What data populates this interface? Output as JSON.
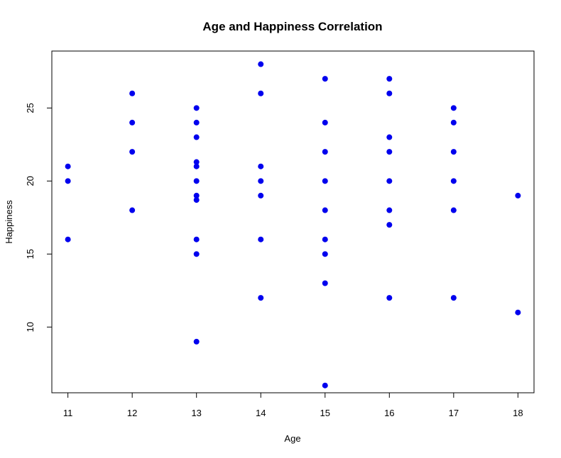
{
  "chart_data": {
    "type": "scatter",
    "title": "Age and Happiness Correlation",
    "xlabel": "Age",
    "ylabel": "Happiness",
    "xlim": [
      10.75,
      18.25
    ],
    "ylim": [
      5.5,
      28.9
    ],
    "xticks": [
      11,
      12,
      13,
      14,
      15,
      16,
      17,
      18
    ],
    "yticks": [
      10,
      15,
      20,
      25
    ],
    "grid": false,
    "point_color": "#0000ee",
    "series": [
      {
        "points": [
          {
            "x": 11,
            "y": 21
          },
          {
            "x": 11,
            "y": 20
          },
          {
            "x": 11,
            "y": 16
          },
          {
            "x": 12,
            "y": 26
          },
          {
            "x": 12,
            "y": 24
          },
          {
            "x": 12,
            "y": 22
          },
          {
            "x": 12,
            "y": 18
          },
          {
            "x": 13,
            "y": 25
          },
          {
            "x": 13,
            "y": 24
          },
          {
            "x": 13,
            "y": 23
          },
          {
            "x": 13,
            "y": 21.3
          },
          {
            "x": 13,
            "y": 21
          },
          {
            "x": 13,
            "y": 20
          },
          {
            "x": 13,
            "y": 19
          },
          {
            "x": 13,
            "y": 18.7
          },
          {
            "x": 13,
            "y": 16
          },
          {
            "x": 13,
            "y": 15
          },
          {
            "x": 13,
            "y": 9
          },
          {
            "x": 14,
            "y": 28
          },
          {
            "x": 14,
            "y": 26
          },
          {
            "x": 14,
            "y": 21
          },
          {
            "x": 14,
            "y": 20
          },
          {
            "x": 14,
            "y": 19
          },
          {
            "x": 14,
            "y": 16
          },
          {
            "x": 14,
            "y": 12
          },
          {
            "x": 15,
            "y": 27
          },
          {
            "x": 15,
            "y": 24
          },
          {
            "x": 15,
            "y": 22
          },
          {
            "x": 15,
            "y": 20
          },
          {
            "x": 15,
            "y": 18
          },
          {
            "x": 15,
            "y": 16
          },
          {
            "x": 15,
            "y": 15
          },
          {
            "x": 15,
            "y": 13
          },
          {
            "x": 15,
            "y": 6
          },
          {
            "x": 16,
            "y": 27
          },
          {
            "x": 16,
            "y": 26
          },
          {
            "x": 16,
            "y": 23
          },
          {
            "x": 16,
            "y": 22
          },
          {
            "x": 16,
            "y": 20
          },
          {
            "x": 16,
            "y": 18
          },
          {
            "x": 16,
            "y": 17
          },
          {
            "x": 16,
            "y": 12
          },
          {
            "x": 17,
            "y": 25
          },
          {
            "x": 17,
            "y": 24
          },
          {
            "x": 17,
            "y": 22
          },
          {
            "x": 17,
            "y": 20
          },
          {
            "x": 17,
            "y": 18
          },
          {
            "x": 17,
            "y": 12
          },
          {
            "x": 18,
            "y": 19
          },
          {
            "x": 18,
            "y": 11
          }
        ]
      }
    ]
  }
}
